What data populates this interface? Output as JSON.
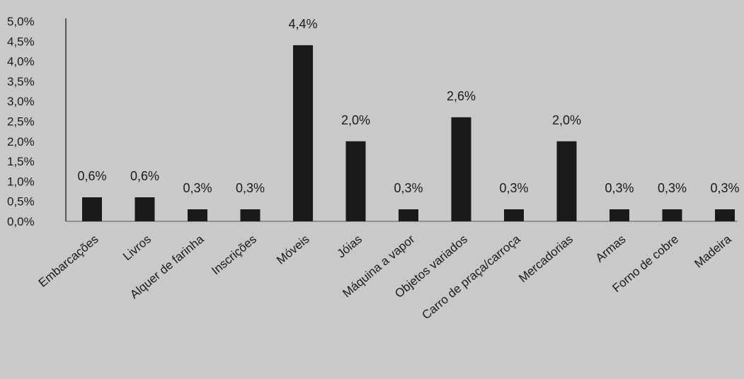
{
  "chart_data": {
    "type": "bar",
    "title": "",
    "xlabel": "",
    "ylabel": "",
    "ylim": [
      0,
      5
    ],
    "y_ticks": [
      "0,0%",
      "0,5%",
      "1,0%",
      "1,5%",
      "2,0%",
      "2,5%",
      "3,0%",
      "3,5%",
      "4,0%",
      "4,5%",
      "5,0%"
    ],
    "grid": false,
    "legend": "none",
    "bar_color": "#1a1a1a",
    "categories": [
      "Embarcações",
      "Livros",
      "Alquer de farinha",
      "Inscrições",
      "Móveis",
      "Jóias",
      "Máquina a vapor",
      "Objetos variados",
      "Carro de praça/carroça",
      "Mercadorias",
      "Armas",
      "Forno de cobre",
      "Madeira"
    ],
    "values": [
      0.6,
      0.6,
      0.3,
      0.3,
      4.4,
      2.0,
      0.3,
      2.6,
      0.3,
      2.0,
      0.3,
      0.3,
      0.3
    ],
    "data_labels": [
      "0,6%",
      "0,6%",
      "0,3%",
      "0,3%",
      "4,4%",
      "2,0%",
      "0,3%",
      "2,6%",
      "0,3%",
      "2,0%",
      "0,3%",
      "0,3%",
      "0,3%"
    ]
  }
}
